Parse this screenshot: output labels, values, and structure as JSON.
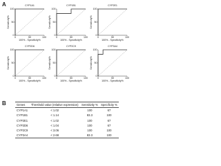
{
  "panel_labels": [
    "A",
    "B"
  ],
  "chart_data": [
    {
      "type": "line",
      "title": "CYP1A1",
      "x_label": "100% - Specificity%",
      "y_label": "Sensitivity%",
      "x": [
        0,
        0,
        33,
        100
      ],
      "values": [
        0,
        100,
        100,
        100
      ],
      "xlim": [
        0,
        100
      ],
      "ylim": [
        0,
        100
      ],
      "xticks": [
        0,
        50,
        100
      ],
      "yticks": [
        0,
        50,
        100
      ],
      "color": "#333333"
    },
    {
      "type": "line",
      "title": "CYP1B1",
      "x_label": "100% - Specificity%",
      "y_label": "Sensitivity%",
      "x": [
        0,
        0,
        50,
        50,
        100
      ],
      "values": [
        0,
        83,
        83,
        100,
        100
      ],
      "xlim": [
        0,
        100
      ],
      "ylim": [
        0,
        100
      ],
      "xticks": [
        0,
        50,
        100
      ],
      "yticks": [
        0,
        50,
        100
      ],
      "color": "#333333"
    },
    {
      "type": "line",
      "title": "CYP2E1",
      "x_label": "100% - Specificity%",
      "y_label": "Sensitivity%",
      "x": [
        0,
        0,
        33,
        100
      ],
      "values": [
        0,
        100,
        100,
        100
      ],
      "xlim": [
        0,
        100
      ],
      "ylim": [
        0,
        100
      ],
      "xticks": [
        0,
        50,
        100
      ],
      "yticks": [
        0,
        50,
        100
      ],
      "color": "#333333"
    },
    {
      "type": "line",
      "title": "CYP2D6",
      "x_label": "100% - Specificity%",
      "y_label": "Sensitivity%",
      "x": [
        0,
        0,
        33,
        100
      ],
      "values": [
        0,
        100,
        100,
        100
      ],
      "xlim": [
        0,
        100
      ],
      "ylim": [
        0,
        100
      ],
      "xticks": [
        0,
        50,
        100
      ],
      "yticks": [
        0,
        50,
        100
      ],
      "color": "#333333"
    },
    {
      "type": "line",
      "title": "CYP2C9",
      "x_label": "100% - Specificity%",
      "y_label": "Sensitivity%",
      "x": [
        0,
        0,
        100
      ],
      "values": [
        0,
        100,
        100
      ],
      "xlim": [
        0,
        100
      ],
      "ylim": [
        0,
        100
      ],
      "xticks": [
        0,
        50,
        100
      ],
      "yticks": [
        0,
        50,
        100
      ],
      "color": "#333333"
    },
    {
      "type": "line",
      "title": "CYP3A4",
      "x_label": "100% - Specificity%",
      "y_label": "Sensitivity%",
      "x": [
        0,
        0,
        17,
        17,
        100
      ],
      "values": [
        0,
        83,
        83,
        100,
        100
      ],
      "xlim": [
        0,
        100
      ],
      "ylim": [
        0,
        100
      ],
      "xticks": [
        0,
        50,
        100
      ],
      "yticks": [
        0,
        50,
        100
      ],
      "color": "#333333"
    }
  ],
  "table": {
    "header": [
      "Genes",
      "Threshold value (relative expression)",
      "Sensitivity %",
      "Specificity %"
    ],
    "rows": [
      [
        "CYP1A1",
        "< 1.02",
        "100",
        "67"
      ],
      [
        "CYP1B1",
        "< 1.14",
        "83.3",
        "100"
      ],
      [
        "CYP2E1",
        "< 1.02",
        "100",
        "67"
      ],
      [
        "CYP2D6",
        "< 1.04",
        "100",
        "67"
      ],
      [
        "CYP2C9",
        "< 3.06",
        "100",
        "100"
      ],
      [
        "CYP3A4",
        "< 2.68",
        "83.3",
        "100"
      ]
    ]
  }
}
